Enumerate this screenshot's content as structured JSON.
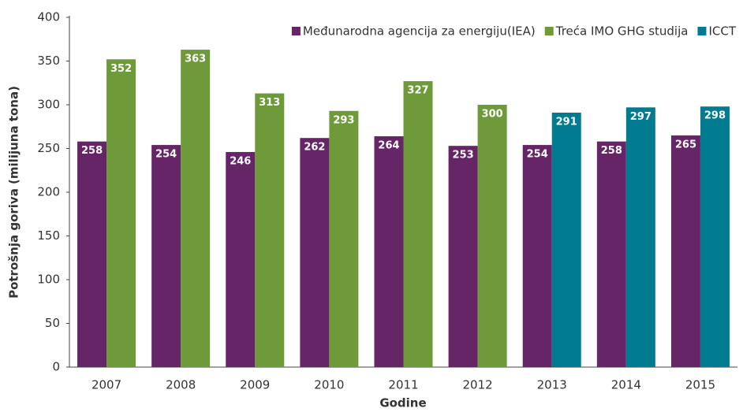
{
  "chart_data": {
    "type": "bar",
    "x_label": "Godine",
    "y_label": "Potrošnja goriva (milijuna tona)",
    "categories": [
      "2007",
      "2008",
      "2009",
      "2010",
      "2011",
      "2012",
      "2013",
      "2014",
      "2015"
    ],
    "series": [
      {
        "name": "Međunarodna agencija za energiju(IEA)",
        "color": "#662566",
        "values": [
          258,
          254,
          246,
          262,
          264,
          253,
          254,
          258,
          265
        ]
      },
      {
        "name": "Treća IMO GHG studija",
        "color": "#6e9a3a",
        "values": [
          352,
          363,
          313,
          293,
          327,
          300,
          null,
          null,
          null
        ]
      },
      {
        "name": "ICCT",
        "color": "#007b8f",
        "values": [
          null,
          null,
          null,
          null,
          null,
          null,
          291,
          297,
          298
        ]
      }
    ],
    "ylim": [
      0,
      400
    ],
    "yticks": [
      0,
      50,
      100,
      150,
      200,
      250,
      300,
      350,
      400
    ],
    "grid": false,
    "legend": "top-right"
  }
}
